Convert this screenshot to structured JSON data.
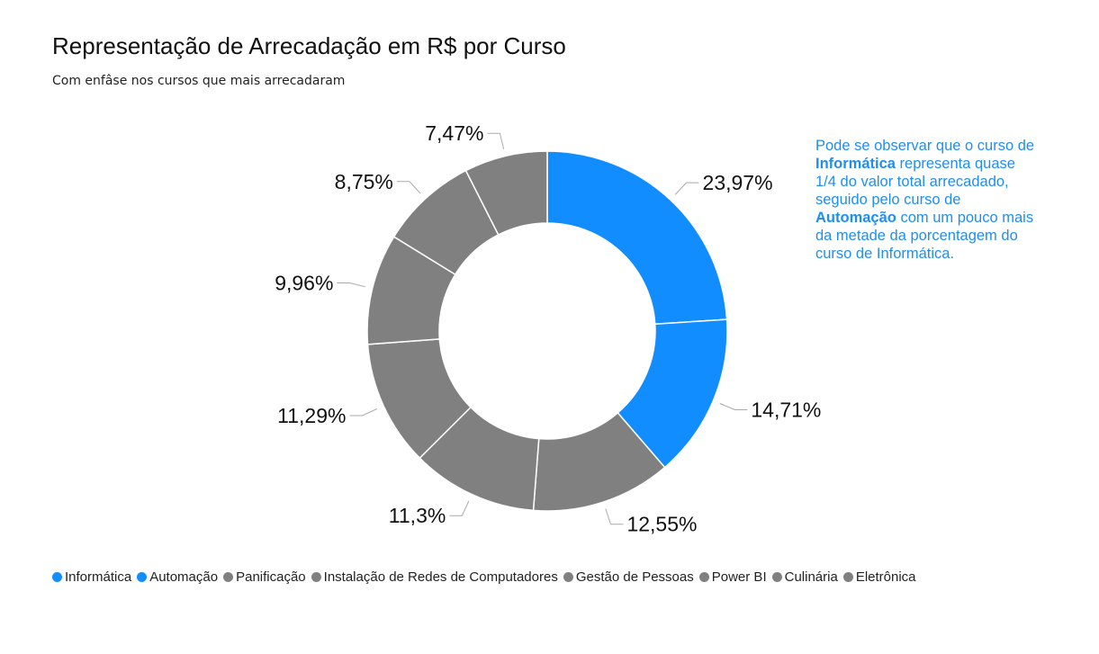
{
  "chart_data": {
    "type": "pie",
    "variant": "donut",
    "title": "Representação de Arrecadação em R$ por Curso",
    "subtitle": "Com enfâse nos cursos que mais arrecadaram",
    "legend_position": "bottom-left",
    "slices": [
      {
        "name": "Informática",
        "value": 23.97,
        "label": "23,97%",
        "color": "#118dff"
      },
      {
        "name": "Automação",
        "value": 14.71,
        "label": "14,71%",
        "color": "#118dff"
      },
      {
        "name": "Panificação",
        "value": 12.55,
        "label": "12,55%",
        "color": "#808080"
      },
      {
        "name": "Instalação de Redes de Computadores",
        "value": 11.3,
        "label": "11,3%",
        "color": "#808080"
      },
      {
        "name": "Gestão de Pessoas",
        "value": 11.29,
        "label": "11,29%",
        "color": "#808080"
      },
      {
        "name": "Power BI",
        "value": 9.96,
        "label": "9,96%",
        "color": "#808080"
      },
      {
        "name": "Culinária",
        "value": 8.75,
        "label": "8,75%",
        "color": "#808080"
      },
      {
        "name": "Eletrônica",
        "value": 7.47,
        "label": "7,47%",
        "color": "#808080"
      }
    ]
  },
  "annotation": {
    "part1": "Pode se observar que o curso de ",
    "bold1": "Informática",
    "part2": " representa quase 1/4 do valor total arrecadado, seguido pelo curso de ",
    "bold2": "Automação",
    "part3": " com um pouco mais da metade da porcentagem do curso de Informática."
  }
}
